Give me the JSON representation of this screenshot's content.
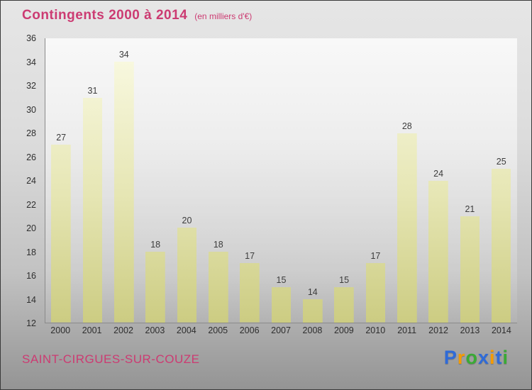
{
  "header": {
    "title": "Contingents 2000 à 2014",
    "subtitle": "(en milliers d'€)"
  },
  "footer": {
    "place": "SAINT-CIRGUES-SUR-COUZE"
  },
  "logo": {
    "text": "Proxiti",
    "letters": [
      {
        "ch": "P",
        "color": "#2f6bd8"
      },
      {
        "ch": "r",
        "color": "#f59b00"
      },
      {
        "ch": "o",
        "color": "#3aaa35"
      },
      {
        "ch": "x",
        "color": "#2f6bd8"
      },
      {
        "ch": "i",
        "color": "#f59b00"
      },
      {
        "ch": "t",
        "color": "#2f6bd8"
      },
      {
        "ch": "i",
        "color": "#3aaa35"
      }
    ]
  },
  "colors": {
    "accent_pink": "#cc3b72",
    "bar_top": "#fbfbe6",
    "bar_bottom": "#cccc82",
    "page_bg_top": "#e6e6e6",
    "page_bg_bottom": "#949494"
  },
  "chart_data": {
    "type": "bar",
    "title": "Contingents 2000 à 2014",
    "subtitle": "(en milliers d'€)",
    "categories": [
      "2000",
      "2001",
      "2002",
      "2003",
      "2004",
      "2005",
      "2006",
      "2007",
      "2008",
      "2009",
      "2010",
      "2011",
      "2012",
      "2013",
      "2014"
    ],
    "values": [
      27,
      31,
      34,
      18,
      20,
      18,
      17,
      15,
      14,
      15,
      17,
      28,
      24,
      21,
      25
    ],
    "xlabel": "",
    "ylabel": "",
    "ylim": [
      12,
      36
    ],
    "ytick_step": 2,
    "grid": false,
    "legend": false,
    "value_labels": true
  }
}
